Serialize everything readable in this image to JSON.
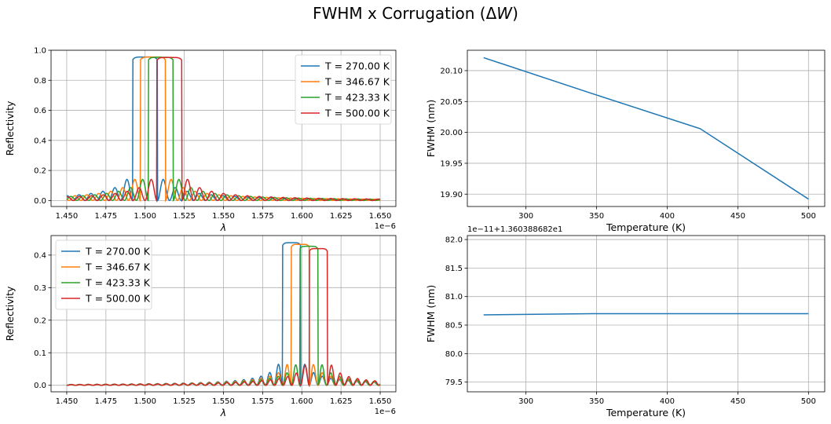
{
  "figure": {
    "title_prefix": "FWHM x Corrugation (Δ",
    "title_italic": "W",
    "title_suffix": ")"
  },
  "colors": {
    "series": [
      "#1f77b4",
      "#ff7f0e",
      "#2ca02c",
      "#d62728"
    ]
  },
  "chart_data": [
    {
      "id": "top-left",
      "type": "line",
      "xlabel": "λ",
      "ylabel": "Reflectivity",
      "offset_text": "1e−6",
      "xlim": [
        1.44,
        1.66
      ],
      "ylim": [
        -0.04,
        1.0
      ],
      "xticks": [
        1.45,
        1.475,
        1.5,
        1.525,
        1.55,
        1.575,
        1.6,
        1.625,
        1.65
      ],
      "xtick_labels": [
        "1.450",
        "1.475",
        "1.500",
        "1.525",
        "1.550",
        "1.575",
        "1.600",
        "1.625",
        "1.650"
      ],
      "yticks": [
        0.0,
        0.2,
        0.4,
        0.6,
        0.8,
        1.0
      ],
      "ytick_labels": [
        "0.0",
        "0.2",
        "0.4",
        "0.6",
        "0.8",
        "1.0"
      ],
      "grid": true,
      "legend_position": "top-right",
      "x_range": [
        1.45,
        1.65
      ],
      "series": [
        {
          "name": "T = 270.00 K",
          "center": 1.5,
          "peak": 0.955,
          "half_width": 0.008
        },
        {
          "name": "T = 346.67 K",
          "center": 1.505,
          "peak": 0.955,
          "half_width": 0.008
        },
        {
          "name": "T = 423.33 K",
          "center": 1.51,
          "peak": 0.953,
          "half_width": 0.008
        },
        {
          "name": "T = 500.00 K",
          "center": 1.5155,
          "peak": 0.952,
          "half_width": 0.008
        }
      ]
    },
    {
      "id": "top-right",
      "type": "line",
      "xlabel": "Temperature (K)",
      "ylabel": "FWHM (nm)",
      "xlim": [
        258.5,
        511.5
      ],
      "ylim": [
        19.88,
        20.133
      ],
      "xticks": [
        300,
        350,
        400,
        450,
        500
      ],
      "xtick_labels": [
        "300",
        "350",
        "400",
        "450",
        "500"
      ],
      "yticks": [
        19.9,
        19.95,
        20.0,
        20.05,
        20.1
      ],
      "ytick_labels": [
        "19.90",
        "19.95",
        "20.00",
        "20.05",
        "20.10"
      ],
      "grid": true,
      "series": [
        {
          "x": [
            270.0,
            346.67,
            423.33,
            500.0
          ],
          "y": [
            20.121,
            20.063,
            20.006,
            19.892
          ]
        }
      ]
    },
    {
      "id": "bottom-left",
      "type": "line",
      "xlabel": "λ",
      "ylabel": "Reflectivity",
      "offset_text": "1e−6",
      "xlim": [
        1.44,
        1.66
      ],
      "ylim": [
        -0.02,
        0.46
      ],
      "xticks": [
        1.45,
        1.475,
        1.5,
        1.525,
        1.55,
        1.575,
        1.6,
        1.625,
        1.65
      ],
      "xtick_labels": [
        "1.450",
        "1.475",
        "1.500",
        "1.525",
        "1.550",
        "1.575",
        "1.600",
        "1.625",
        "1.650"
      ],
      "yticks": [
        0.0,
        0.1,
        0.2,
        0.3,
        0.4
      ],
      "ytick_labels": [
        "0.0",
        "0.1",
        "0.2",
        "0.3",
        "0.4"
      ],
      "grid": true,
      "legend_position": "top-left",
      "x_range": [
        1.45,
        1.65
      ],
      "series": [
        {
          "name": "T = 270.00 K",
          "center": 1.5935,
          "peak": 0.438,
          "half_width": 0.0058
        },
        {
          "name": "T = 346.67 K",
          "center": 1.599,
          "peak": 0.433,
          "half_width": 0.0058
        },
        {
          "name": "T = 423.33 K",
          "center": 1.6045,
          "peak": 0.427,
          "half_width": 0.0058
        },
        {
          "name": "T = 500.00 K",
          "center": 1.6105,
          "peak": 0.42,
          "half_width": 0.0058
        }
      ]
    },
    {
      "id": "bottom-right",
      "type": "line",
      "xlabel": "Temperature (K)",
      "ylabel": "FWHM (nm)",
      "offset_text": "1e−11+1.360388682e1",
      "xlim": [
        258.5,
        511.5
      ],
      "ylim": [
        79.33,
        82.07
      ],
      "xticks": [
        300,
        350,
        400,
        450,
        500
      ],
      "xtick_labels": [
        "300",
        "350",
        "400",
        "450",
        "500"
      ],
      "yticks": [
        79.5,
        80.0,
        80.5,
        81.0,
        81.5,
        82.0
      ],
      "ytick_labels": [
        "79.5",
        "80.0",
        "80.5",
        "81.0",
        "81.5",
        "82.0"
      ],
      "grid": true,
      "series": [
        {
          "x": [
            270.0,
            346.67,
            423.33,
            500.0
          ],
          "y": [
            80.68,
            80.7,
            80.7,
            80.7
          ]
        }
      ]
    }
  ]
}
